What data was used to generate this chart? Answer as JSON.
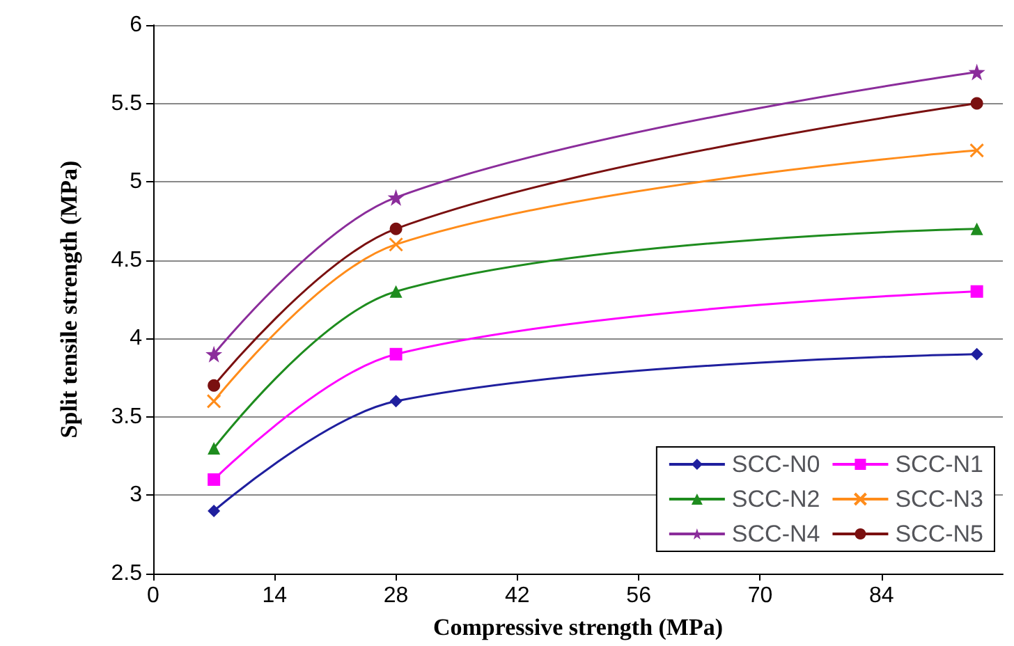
{
  "chart_data": {
    "type": "line",
    "xlabel": "Compressive strength (MPa)",
    "ylabel": "Split tensile strength (MPa)",
    "x": [
      7,
      28,
      95
    ],
    "xlim": [
      0,
      98
    ],
    "xticks": [
      0,
      14,
      28,
      42,
      56,
      70,
      84
    ],
    "ylim": [
      2.5,
      6
    ],
    "yticks": [
      2.5,
      3,
      3.5,
      4,
      4.5,
      5,
      5.5,
      6
    ],
    "grid": "y",
    "legend": "bottom right",
    "series": [
      {
        "name": "SCC-N0",
        "color": "#1f1f9e",
        "marker": "diamond",
        "values": [
          2.9,
          3.6,
          3.9
        ]
      },
      {
        "name": "SCC-N1",
        "color": "#ff00ff",
        "marker": "square",
        "values": [
          3.1,
          3.9,
          4.3
        ]
      },
      {
        "name": "SCC-N2",
        "color": "#1e8c1e",
        "marker": "triangle",
        "values": [
          3.3,
          4.3,
          4.7
        ]
      },
      {
        "name": "SCC-N3",
        "color": "#ff8c1a",
        "marker": "cross",
        "values": [
          3.6,
          4.6,
          5.2
        ]
      },
      {
        "name": "SCC-N4",
        "color": "#8b2d9b",
        "marker": "star",
        "values": [
          3.9,
          4.9,
          5.7
        ]
      },
      {
        "name": "SCC-N5",
        "color": "#7a1010",
        "marker": "circle",
        "values": [
          3.7,
          4.7,
          5.5
        ]
      }
    ]
  }
}
